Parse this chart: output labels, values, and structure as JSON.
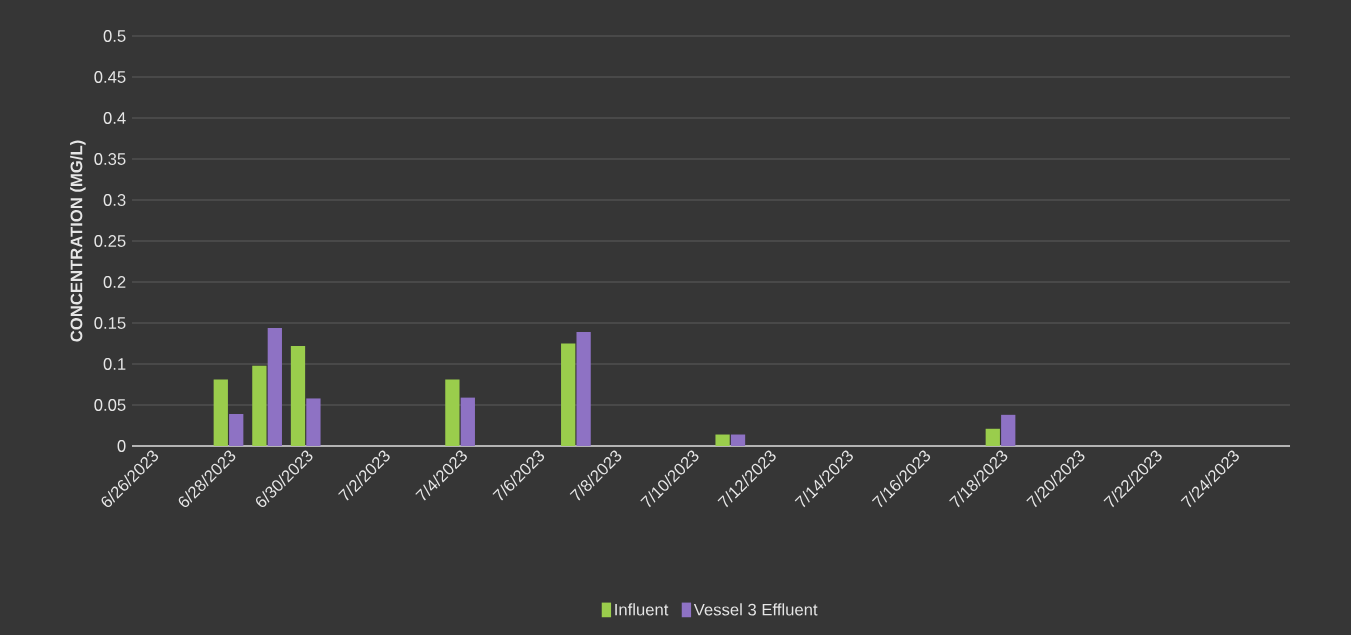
{
  "chart_data": {
    "type": "bar",
    "ylabel": "CONCENTRATION (MG/L)",
    "x": [
      "2023-06-28",
      "2023-06-29",
      "2023-06-30",
      "2023-07-04",
      "2023-07-07",
      "2023-07-11",
      "2023-07-18"
    ],
    "series": [
      {
        "name": "Influent",
        "color": "#9acd4c",
        "values": [
          0.081,
          0.098,
          0.122,
          0.081,
          0.125,
          0.014,
          0.021
        ]
      },
      {
        "name": "Vessel 3 Effluent",
        "color": "#8e72c4",
        "values": [
          0.039,
          0.144,
          0.058,
          0.059,
          0.139,
          0.014,
          0.038
        ]
      }
    ],
    "xlim": [
      "2023-06-25T12:00",
      "2023-07-25T12:00"
    ],
    "xticks": [
      {
        "value": "2023-06-26",
        "label": "6/26/2023"
      },
      {
        "value": "2023-06-28",
        "label": "6/28/2023"
      },
      {
        "value": "2023-06-30",
        "label": "6/30/2023"
      },
      {
        "value": "2023-07-02",
        "label": "7/2/2023"
      },
      {
        "value": "2023-07-04",
        "label": "7/4/2023"
      },
      {
        "value": "2023-07-06",
        "label": "7/6/2023"
      },
      {
        "value": "2023-07-08",
        "label": "7/8/2023"
      },
      {
        "value": "2023-07-10",
        "label": "7/10/2023"
      },
      {
        "value": "2023-07-12",
        "label": "7/12/2023"
      },
      {
        "value": "2023-07-14",
        "label": "7/14/2023"
      },
      {
        "value": "2023-07-16",
        "label": "7/16/2023"
      },
      {
        "value": "2023-07-18",
        "label": "7/18/2023"
      },
      {
        "value": "2023-07-20",
        "label": "7/20/2023"
      },
      {
        "value": "2023-07-22",
        "label": "7/22/2023"
      },
      {
        "value": "2023-07-24",
        "label": "7/24/2023"
      }
    ],
    "ylim": [
      0,
      0.5
    ],
    "yticks": [
      0,
      0.05,
      0.1,
      0.15,
      0.2,
      0.25,
      0.3,
      0.35,
      0.4,
      0.45,
      0.5
    ],
    "grid": "y",
    "legend": "bottom"
  }
}
